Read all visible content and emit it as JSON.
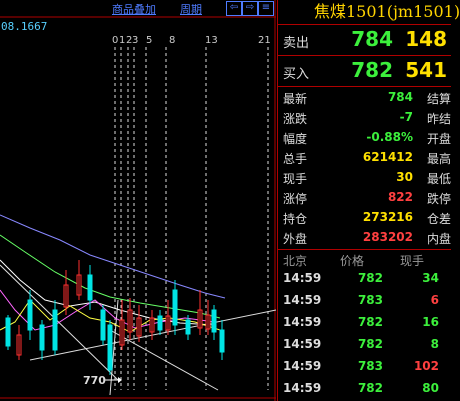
{
  "toolbar": {
    "overlay_label": "商品叠加",
    "period_label": "周期",
    "nav_buttons": [
      "⇦",
      "⇨",
      "≡"
    ]
  },
  "chart": {
    "price_readout": "08.1667",
    "day_ticks": [
      "0",
      "1",
      "2",
      "3",
      "5",
      "8",
      "13",
      "21"
    ],
    "low_label": "770"
  },
  "quote": {
    "title": "焦煤1501(jm1501)",
    "ask": {
      "label": "卖出",
      "price": "784",
      "volume": "148"
    },
    "bid": {
      "label": "买入",
      "price": "782",
      "volume": "541"
    },
    "stats": [
      {
        "k": "最新",
        "v": "784",
        "color": "#3cf03c",
        "k2": "结算"
      },
      {
        "k": "涨跌",
        "v": "-7",
        "color": "#3cf03c",
        "k2": "昨结"
      },
      {
        "k": "幅度",
        "v": "-0.88%",
        "color": "#3cf03c",
        "k2": "开盘"
      },
      {
        "k": "总手",
        "v": "621412",
        "color": "#ffe000",
        "k2": "最高"
      },
      {
        "k": "现手",
        "v": "30",
        "color": "#ffe000",
        "k2": "最低"
      },
      {
        "k": "涨停",
        "v": "822",
        "color": "#ff4040",
        "k2": "跌停"
      },
      {
        "k": "持仓",
        "v": "273216",
        "color": "#ffe000",
        "k2": "仓差"
      },
      {
        "k": "外盘",
        "v": "283202",
        "color": "#ff4040",
        "k2": "内盘"
      }
    ],
    "ticks_header": {
      "time": "北京",
      "price": "价格",
      "volume": "现手"
    },
    "ticks": [
      {
        "time": "14:59",
        "price": "782",
        "volume": "34",
        "vcolor": "#3cf03c"
      },
      {
        "time": "14:59",
        "price": "783",
        "volume": "6",
        "vcolor": "#ff4040"
      },
      {
        "time": "14:59",
        "price": "782",
        "volume": "16",
        "vcolor": "#3cf03c"
      },
      {
        "time": "14:59",
        "price": "782",
        "volume": "8",
        "vcolor": "#3cf03c"
      },
      {
        "time": "14:59",
        "price": "783",
        "volume": "102",
        "vcolor": "#ff4040"
      },
      {
        "time": "14:59",
        "price": "782",
        "volume": "80",
        "vcolor": "#3cf03c"
      }
    ]
  },
  "colors": {
    "up": "#ff4040",
    "down": "#3cf03c",
    "accent": "#ffd400",
    "link": "#4f7cff",
    "border": "#b00000"
  }
}
